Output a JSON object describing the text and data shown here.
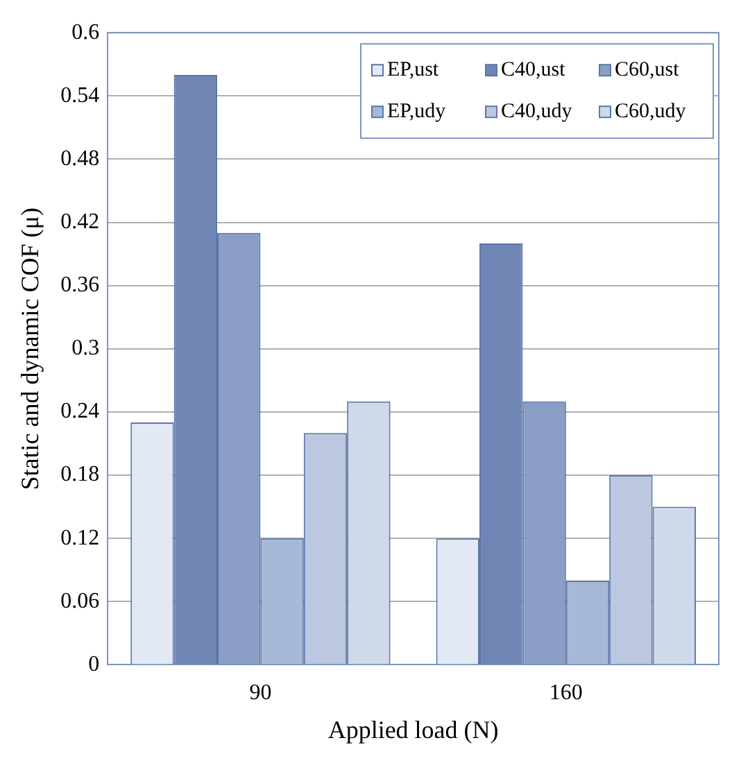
{
  "chart_data": {
    "type": "bar",
    "xlabel": "Applied load (N)",
    "ylabel": "Static and dynamic COF (μ)",
    "categories": [
      "90",
      "160"
    ],
    "series": [
      {
        "name": "EP,ust",
        "color": "#e3e9f4",
        "values": [
          0.23,
          0.12
        ]
      },
      {
        "name": "C40,ust",
        "color": "#6f86b5",
        "values": [
          0.56,
          0.4
        ]
      },
      {
        "name": "C60,ust",
        "color": "#8a9ec6",
        "values": [
          0.41,
          0.25
        ]
      },
      {
        "name": "EP,udy",
        "color": "#a8b8d7",
        "values": [
          0.12,
          0.08
        ]
      },
      {
        "name": "C40,udy",
        "color": "#bcc8e0",
        "values": [
          0.22,
          0.18
        ]
      },
      {
        "name": "C60,udy",
        "color": "#d0d9ea",
        "values": [
          0.25,
          0.15
        ]
      }
    ],
    "ylim": [
      0,
      0.6
    ],
    "yticks": [
      0,
      0.06,
      0.12,
      0.18,
      0.24,
      0.3,
      0.36,
      0.42,
      0.48,
      0.54,
      0.6
    ],
    "grid": "y",
    "legend": "top right"
  }
}
